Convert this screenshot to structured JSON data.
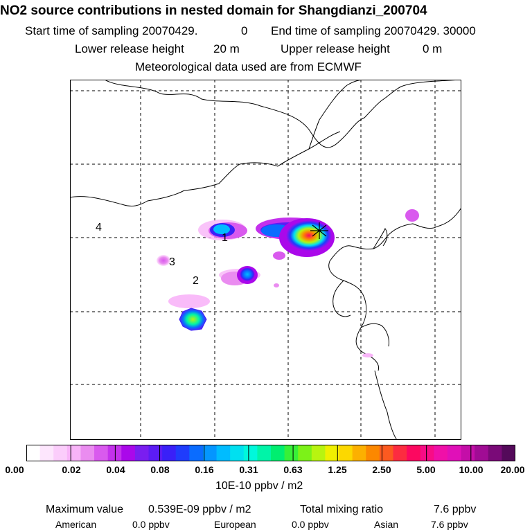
{
  "header": {
    "title": "NO2 source contributions in nested domain for Shangdianzi_200704",
    "start_label": "Start time of sampling 20070429.",
    "start_value": "0",
    "end_label": "End time of sampling 20070429. 30000",
    "lower_label": "Lower release height",
    "lower_value": "20 m",
    "upper_label": "Upper release height",
    "upper_value": "0 m",
    "met_line": "Meteorological data used are from ECMWF"
  },
  "map": {
    "region_labels": [
      "1",
      "2",
      "3",
      "4"
    ],
    "receptor_marker": "star-cross"
  },
  "colorbar": {
    "ticks": [
      "0.00",
      "0.02",
      "0.04",
      "0.08",
      "0.16",
      "0.31",
      "0.63",
      "1.25",
      "2.50",
      "5.00",
      "10.00",
      "20.00"
    ],
    "unit": "10E-10 ppbv / m2",
    "colors": [
      "#ffffff",
      "#fde6fd",
      "#fbcdfb",
      "#f8b4f8",
      "#ea8cf0",
      "#d95aee",
      "#c431ec",
      "#aa08ea",
      "#7a1ef0",
      "#5c1cf4",
      "#3a20f8",
      "#1f3cfc",
      "#0a6cff",
      "#0496ff",
      "#00bcff",
      "#00e0f0",
      "#00f8dc",
      "#00f4a8",
      "#00ee70",
      "#38f038",
      "#7cf218",
      "#b8f410",
      "#f0f000",
      "#fcd800",
      "#fcb000",
      "#fc8800",
      "#fc5a20",
      "#fc2c40",
      "#fc0860",
      "#f80c86",
      "#f010a8",
      "#e010b8",
      "#c40ea8",
      "#a00c94",
      "#7a0a78",
      "#540a5a"
    ]
  },
  "footer": {
    "max_label": "Maximum value",
    "max_value": "0.539E-09 ppbv / m2",
    "total_label": "Total mixing ratio",
    "total_value": "7.6 ppbv",
    "american_label": "American",
    "american_value": "0.0 ppbv",
    "european_label": "European",
    "european_value": "0.0 ppbv",
    "asian_label": "Asian",
    "asian_value": "7.6 ppbv"
  }
}
